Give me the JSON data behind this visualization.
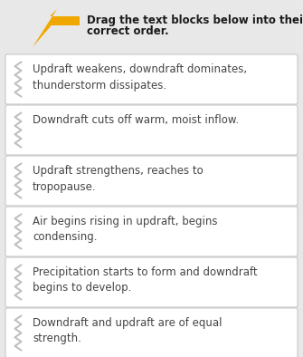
{
  "title_line1": "Drag the text blocks below into their",
  "title_line2": "correct order.",
  "title_fontsize": 8.5,
  "title_fontweight": "bold",
  "title_color": "#1a1a1a",
  "bg_color": "#e8e8e8",
  "card_bg": "#ffffff",
  "card_border": "#c8c8c8",
  "arrow_color": "#f0a800",
  "items": [
    "Updraft weakens, downdraft dominates,\nthunderstorm dissipates.",
    "Downdraft cuts off warm, moist inflow.",
    "Updraft strengthens, reaches to\ntropopause.",
    "Air begins rising in updraft, begins\ncondensing.",
    "Precipitation starts to form and downdraft\nbegins to develop.",
    "Downdraft and updraft are of equal\nstrength."
  ],
  "item_fontsize": 8.5,
  "item_color": "#444444",
  "grip_color": "#c0c0c0",
  "figsize": [
    3.35,
    3.94
  ],
  "dpi": 100
}
